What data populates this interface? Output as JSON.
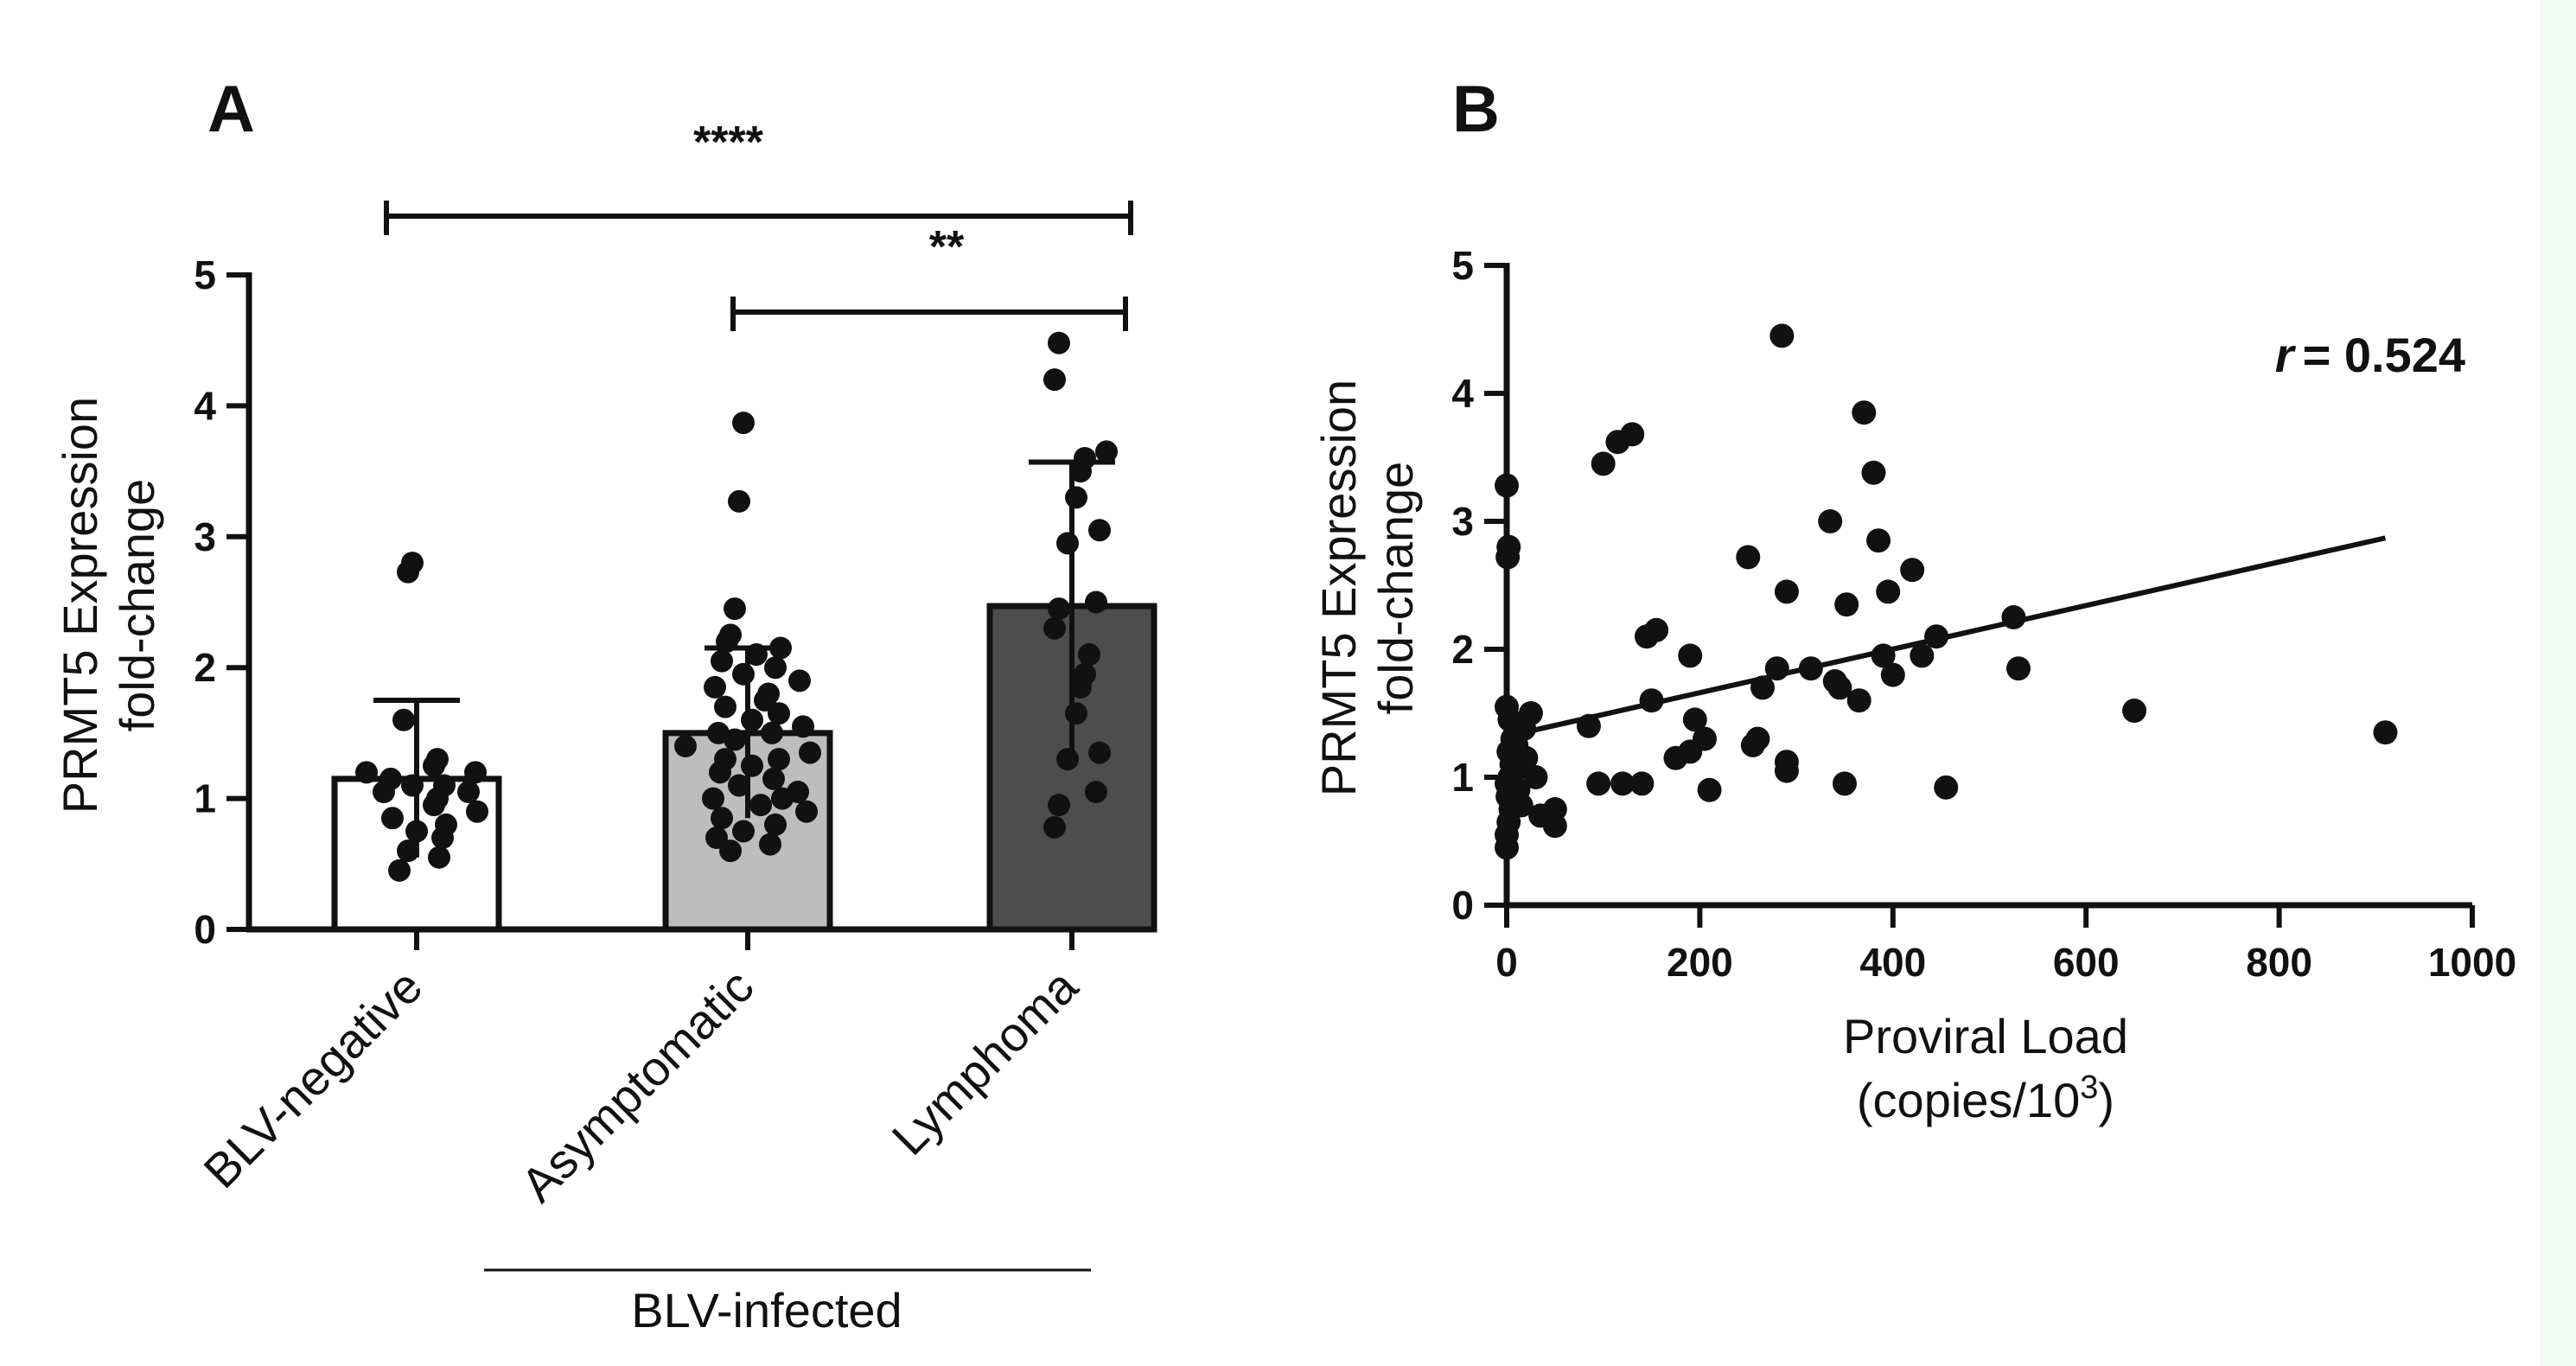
{
  "figure": {
    "colors": {
      "axis": "#111111",
      "bar_neg": "#ffffff",
      "bar_asym": "#bdbdbd",
      "bar_lymph": "#4d4d4d",
      "dot": "#111111",
      "edge_strip": "#f3faf5"
    }
  },
  "chart_data": [
    {
      "panel": "A",
      "type": "bar",
      "ylabel_line1": "PRMT5 Expression",
      "ylabel_line2": "fold-change",
      "ylim": [
        0,
        5
      ],
      "yticks": [
        0,
        1,
        2,
        3,
        4,
        5
      ],
      "categories": [
        "BLV-negative",
        "Asymptomatic",
        "Lymphoma"
      ],
      "means": [
        1.15,
        1.5,
        2.47
      ],
      "sd": [
        0.6,
        0.65,
        1.1
      ],
      "group_label": "BLV-infected",
      "significance": [
        {
          "from": "BLV-negative",
          "to": "Lymphoma",
          "label": "****"
        },
        {
          "from": "Asymptomatic",
          "to": "Lymphoma",
          "label": "**"
        }
      ],
      "points": [
        [
          0.45,
          0.55,
          0.6,
          0.7,
          0.75,
          0.8,
          0.85,
          0.9,
          0.95,
          1.0,
          1.05,
          1.05,
          1.1,
          1.1,
          1.15,
          1.2,
          1.2,
          1.25,
          1.3,
          1.6,
          2.73,
          2.8
        ],
        [
          0.6,
          0.65,
          0.7,
          0.75,
          0.8,
          0.85,
          0.9,
          0.95,
          1.0,
          1.0,
          1.05,
          1.1,
          1.15,
          1.2,
          1.25,
          1.3,
          1.3,
          1.35,
          1.4,
          1.45,
          1.5,
          1.5,
          1.55,
          1.6,
          1.65,
          1.7,
          1.75,
          1.8,
          1.85,
          1.9,
          1.95,
          2.0,
          2.05,
          2.1,
          2.15,
          2.2,
          2.25,
          2.45,
          3.27,
          3.87
        ],
        [
          0.78,
          0.95,
          1.05,
          1.3,
          1.35,
          1.65,
          1.85,
          1.95,
          2.1,
          2.3,
          2.45,
          2.5,
          2.95,
          3.05,
          3.3,
          3.5,
          3.6,
          3.65,
          4.2,
          4.48
        ]
      ]
    },
    {
      "panel": "B",
      "type": "scatter",
      "ylabel_line1": "PRMT5 Expression",
      "ylabel_line2": "fold-change",
      "xlabel_line1": "Proviral Load",
      "xlabel_line2": "(copies/10",
      "xlabel_sup": "3",
      "xlabel_end": ")",
      "xlim": [
        0,
        1000
      ],
      "ylim": [
        0,
        5
      ],
      "xticks": [
        0,
        200,
        400,
        600,
        800,
        1000
      ],
      "yticks": [
        0,
        1,
        2,
        3,
        4,
        5
      ],
      "r_label": "r",
      "r_value": "= 0.524",
      "trendline": {
        "x": [
          0,
          910
        ],
        "y": [
          1.32,
          2.87
        ]
      },
      "points": [
        [
          0,
          0.45
        ],
        [
          0,
          0.55
        ],
        [
          2,
          0.65
        ],
        [
          4,
          0.75
        ],
        [
          1,
          0.85
        ],
        [
          0,
          0.95
        ],
        [
          3,
          1.0
        ],
        [
          5,
          1.1
        ],
        [
          2,
          1.2
        ],
        [
          6,
          1.3
        ],
        [
          3,
          1.45
        ],
        [
          0,
          1.55
        ],
        [
          1,
          2.72
        ],
        [
          2,
          2.8
        ],
        [
          0,
          3.28
        ],
        [
          8,
          1.05
        ],
        [
          10,
          1.25
        ],
        [
          12,
          0.9
        ],
        [
          15,
          0.78
        ],
        [
          18,
          1.38
        ],
        [
          20,
          1.15
        ],
        [
          25,
          1.5
        ],
        [
          30,
          1.0
        ],
        [
          35,
          0.7
        ],
        [
          50,
          0.62
        ],
        [
          50,
          0.75
        ],
        [
          85,
          1.4
        ],
        [
          95,
          0.95
        ],
        [
          100,
          3.45
        ],
        [
          115,
          3.62
        ],
        [
          120,
          0.95
        ],
        [
          130,
          3.68
        ],
        [
          140,
          0.95
        ],
        [
          145,
          2.1
        ],
        [
          150,
          1.6
        ],
        [
          155,
          2.15
        ],
        [
          175,
          1.15
        ],
        [
          190,
          1.2
        ],
        [
          190,
          1.95
        ],
        [
          195,
          1.45
        ],
        [
          205,
          1.3
        ],
        [
          210,
          0.9
        ],
        [
          250,
          2.72
        ],
        [
          255,
          1.25
        ],
        [
          260,
          1.3
        ],
        [
          265,
          1.7
        ],
        [
          280,
          1.85
        ],
        [
          285,
          4.45
        ],
        [
          290,
          1.05
        ],
        [
          290,
          1.12
        ],
        [
          290,
          2.45
        ],
        [
          315,
          1.85
        ],
        [
          335,
          3.0
        ],
        [
          340,
          1.75
        ],
        [
          345,
          1.7
        ],
        [
          350,
          0.95
        ],
        [
          352,
          2.35
        ],
        [
          365,
          1.6
        ],
        [
          370,
          3.85
        ],
        [
          380,
          3.38
        ],
        [
          385,
          2.85
        ],
        [
          390,
          1.95
        ],
        [
          395,
          2.45
        ],
        [
          400,
          1.8
        ],
        [
          420,
          2.62
        ],
        [
          430,
          1.95
        ],
        [
          445,
          2.1
        ],
        [
          455,
          0.92
        ],
        [
          525,
          2.25
        ],
        [
          530,
          1.85
        ],
        [
          650,
          1.52
        ],
        [
          910,
          1.35
        ]
      ]
    }
  ]
}
